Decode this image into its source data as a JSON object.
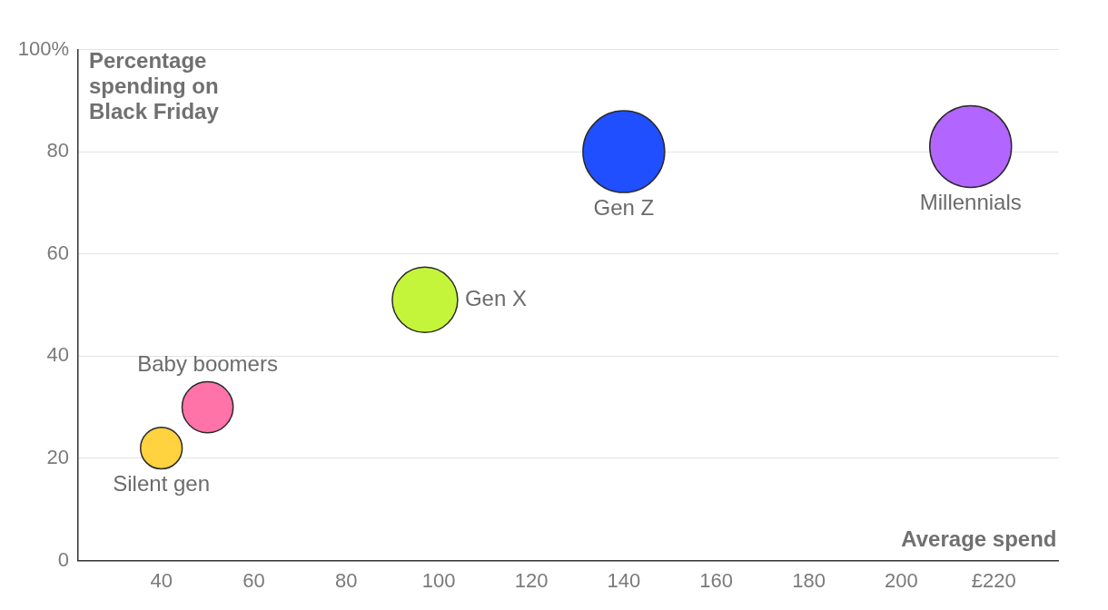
{
  "chart_data": {
    "type": "bubble",
    "xlabel": "Average spend",
    "ylabel": "Percentage spending on Black Friday",
    "xlim": [
      22,
      234
    ],
    "xticks": [
      40,
      60,
      80,
      100,
      120,
      140,
      160,
      180,
      200,
      {
        "value": 220,
        "label": "£220"
      }
    ],
    "ylim": [
      0,
      100
    ],
    "yticks": [
      0,
      20,
      40,
      60,
      80,
      {
        "value": 100,
        "label": "100%"
      }
    ],
    "grid": "y",
    "legend": false,
    "series": [
      {
        "name": "Silent gen",
        "color": "#ffd23f",
        "x": [
          40
        ],
        "values": [
          22
        ],
        "sizes": [
          0.26
        ]
      },
      {
        "name": "Baby boomers",
        "color": "#ff73a8",
        "x": [
          50
        ],
        "values": [
          30
        ],
        "sizes": [
          0.39
        ]
      },
      {
        "name": "Gen X",
        "color": "#c5f53b",
        "x": [
          97
        ],
        "values": [
          51
        ],
        "sizes": [
          0.64
        ]
      },
      {
        "name": "Gen Z",
        "color": "#1f4fff",
        "x": [
          140
        ],
        "values": [
          80
        ],
        "sizes": [
          1
        ]
      },
      {
        "name": "Millennials",
        "color": "#b366ff",
        "x": [
          215
        ],
        "values": [
          81
        ],
        "sizes": [
          1
        ]
      }
    ]
  }
}
